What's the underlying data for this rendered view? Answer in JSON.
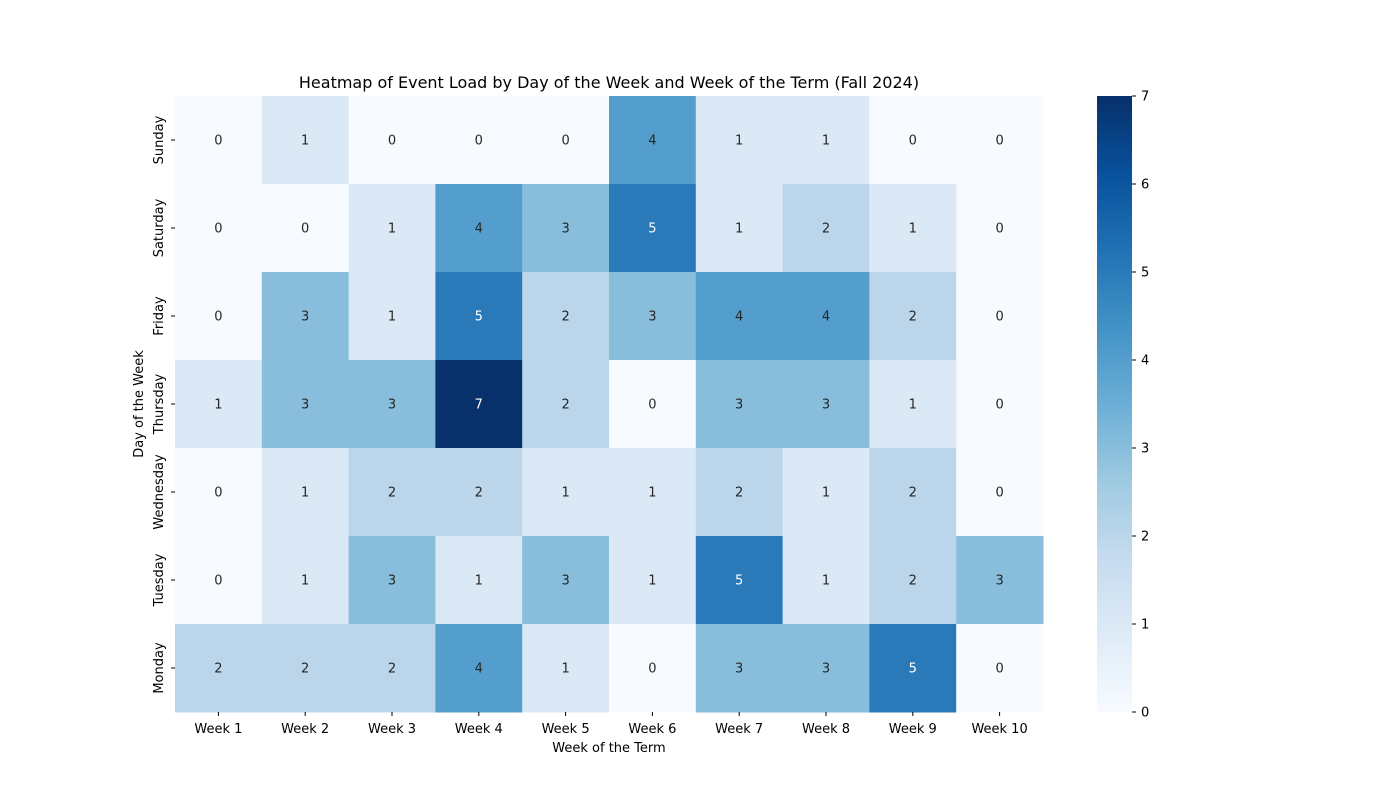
{
  "chart_data": {
    "type": "heatmap",
    "title": "Heatmap of Event Load by Day of the Week and Week of the Term (Fall 2024)",
    "xlabel": "Week of the Term",
    "ylabel": "Day of the Week",
    "x_categories": [
      "Week 1",
      "Week 2",
      "Week 3",
      "Week 4",
      "Week 5",
      "Week 6",
      "Week 7",
      "Week 8",
      "Week 9",
      "Week 10"
    ],
    "y_categories": [
      "Sunday",
      "Saturday",
      "Friday",
      "Thursday",
      "Wednesday",
      "Tuesday",
      "Monday"
    ],
    "values": [
      [
        0,
        1,
        0,
        0,
        0,
        4,
        1,
        1,
        0,
        0
      ],
      [
        0,
        0,
        1,
        4,
        3,
        5,
        1,
        2,
        1,
        0
      ],
      [
        0,
        3,
        1,
        5,
        2,
        3,
        4,
        4,
        2,
        0
      ],
      [
        1,
        3,
        3,
        7,
        2,
        0,
        3,
        3,
        1,
        0
      ],
      [
        0,
        1,
        2,
        2,
        1,
        1,
        2,
        1,
        2,
        0
      ],
      [
        0,
        1,
        3,
        1,
        3,
        1,
        5,
        1,
        2,
        3
      ],
      [
        2,
        2,
        2,
        4,
        1,
        0,
        3,
        3,
        5,
        0
      ]
    ],
    "value_range": [
      0,
      7
    ],
    "colorbar_ticks": [
      "0",
      "1",
      "2",
      "3",
      "4",
      "5",
      "6",
      "7"
    ],
    "colormap": "Blues",
    "colorbar_position": "right",
    "annotations": true,
    "grid": false
  }
}
